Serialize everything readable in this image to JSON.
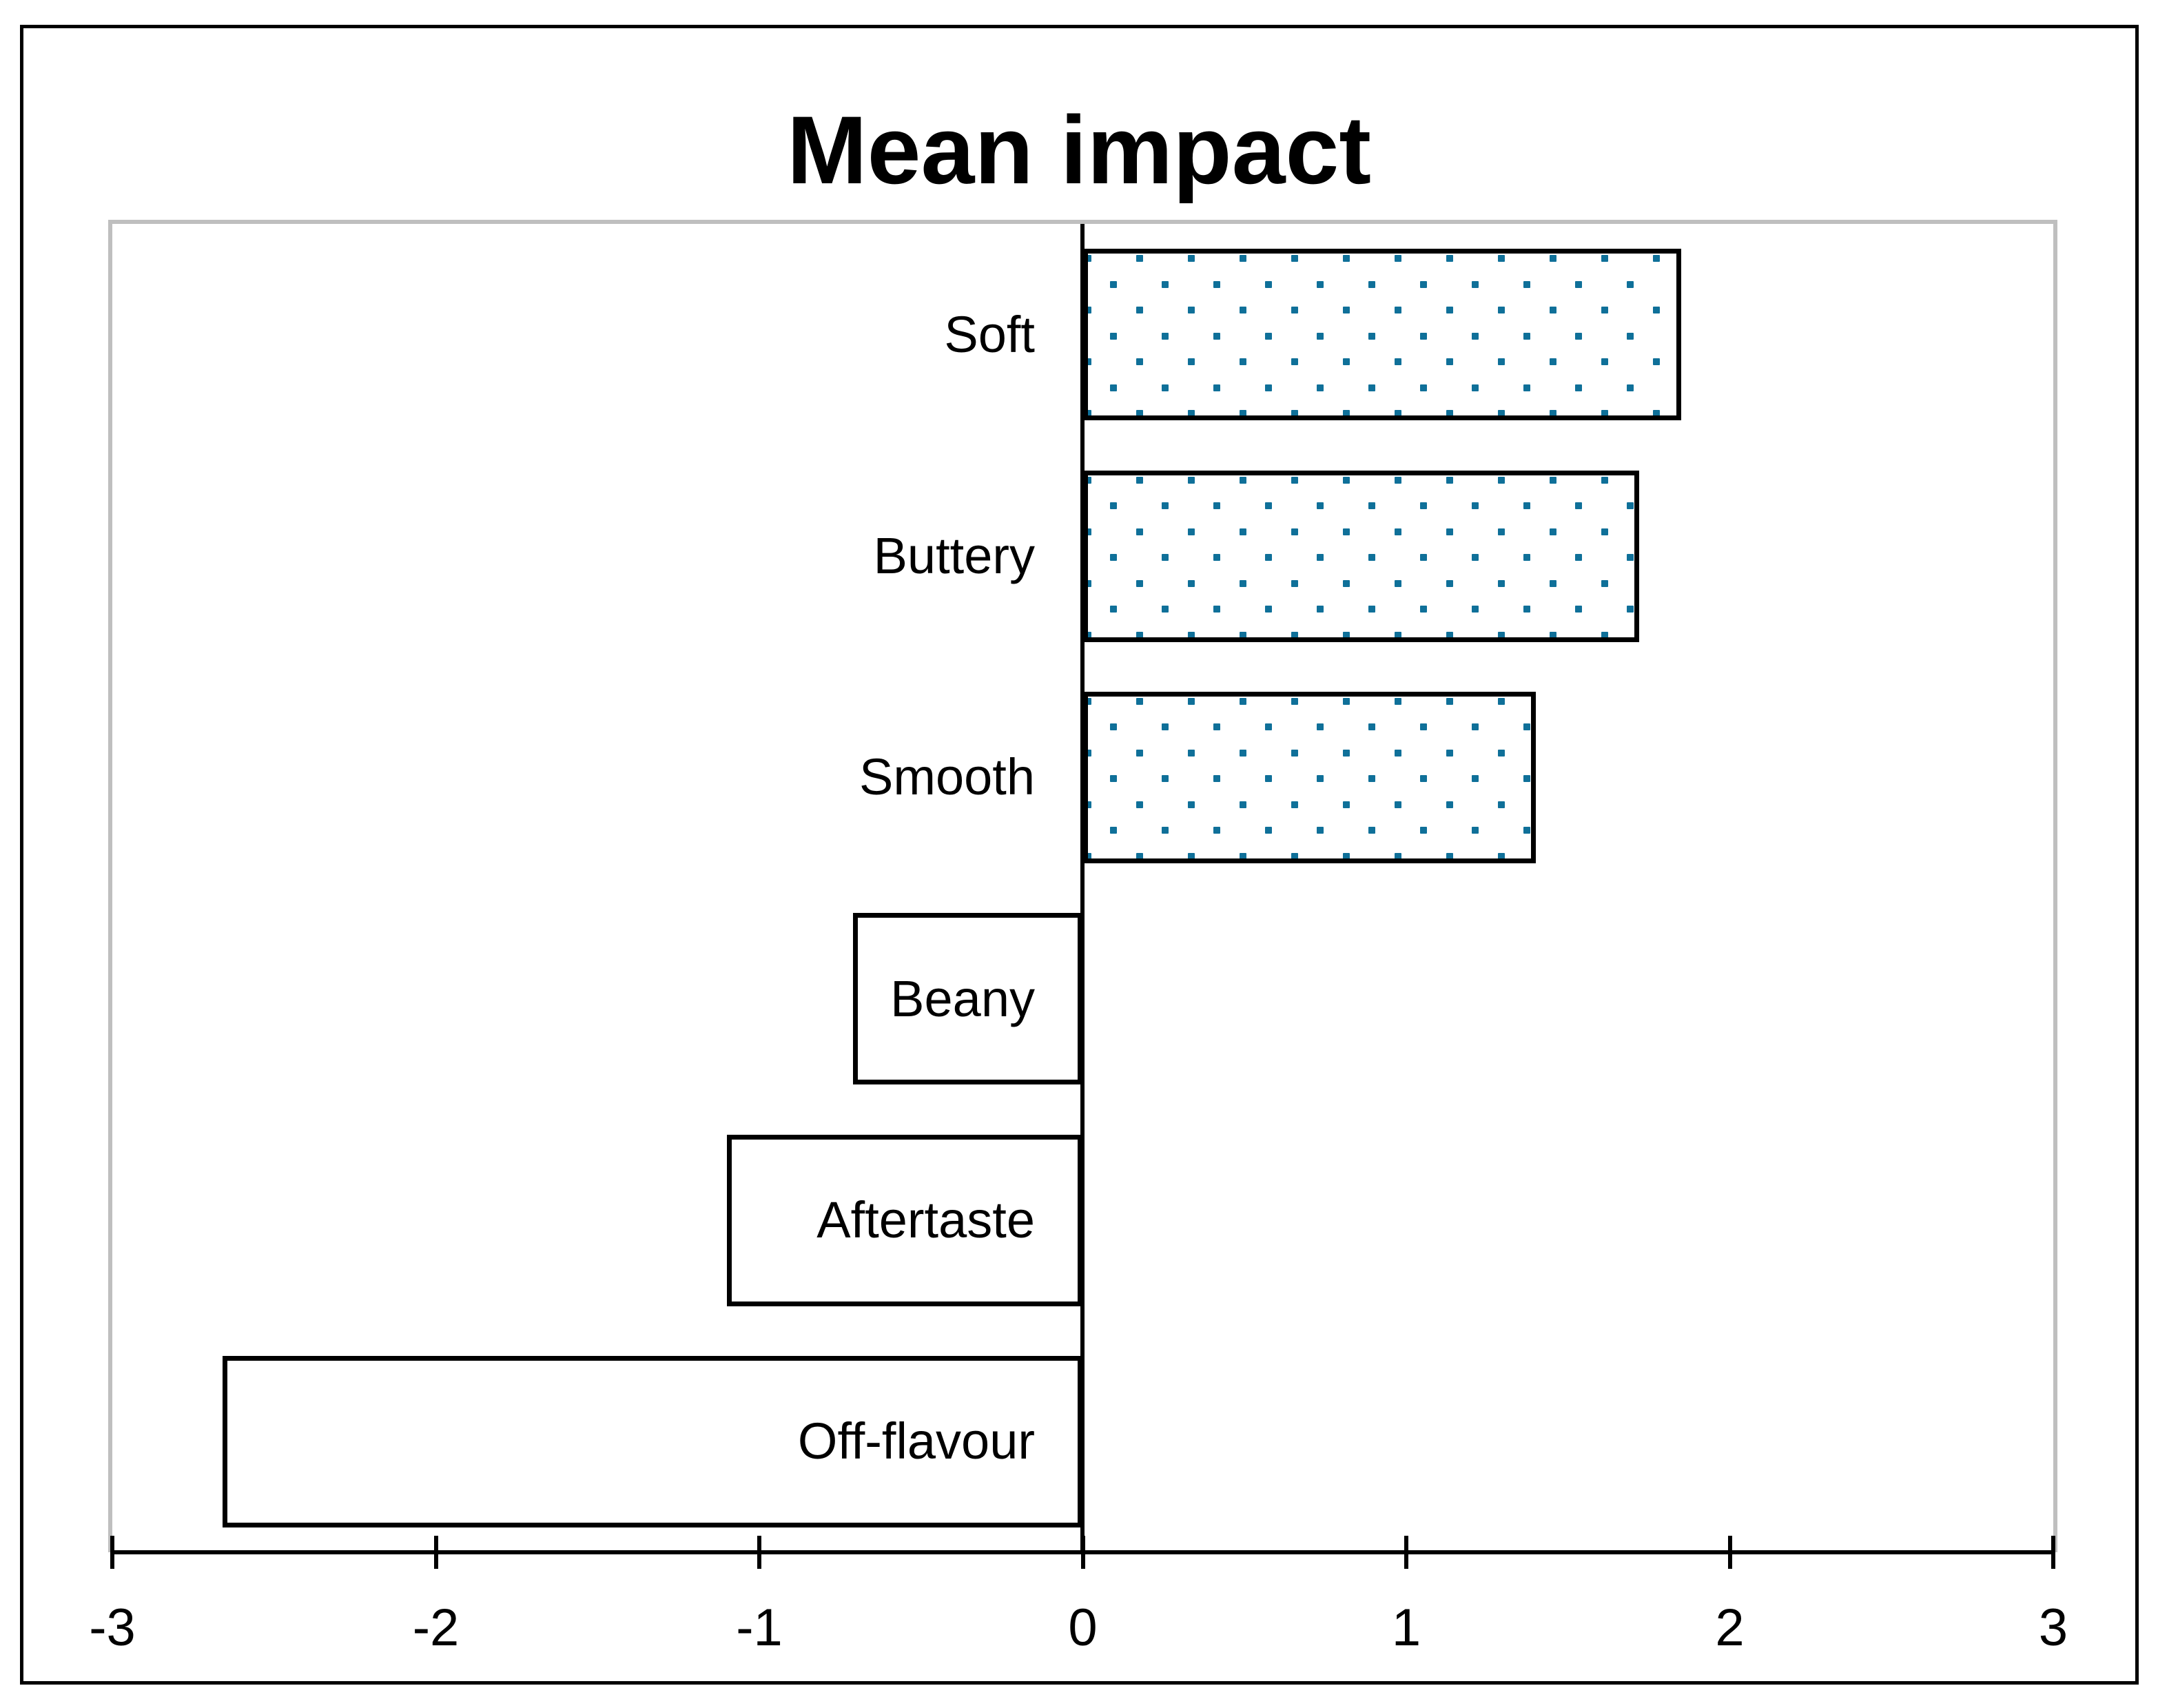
{
  "chart_data": {
    "type": "bar",
    "orientation": "horizontal",
    "title": "Mean impact",
    "categories": [
      "Soft",
      "Buttery",
      "Smooth",
      "Beany",
      "Aftertaste",
      "Off-flavour"
    ],
    "values": [
      1.85,
      1.72,
      1.4,
      -0.71,
      -1.1,
      -2.66
    ],
    "xlim": [
      -3,
      3
    ],
    "x_ticks": [
      -3,
      -2,
      -1,
      0,
      1,
      2,
      3
    ],
    "x_tick_labels": [
      "-3",
      "-2",
      "-1",
      "0",
      "1",
      "2",
      "3"
    ],
    "xlabel": "",
    "ylabel": "",
    "grid": false,
    "legend": null,
    "bar_fill_positive": "teal-dot-pattern",
    "bar_fill_negative": "plain-white",
    "label_position": "right-aligned-left-of-zero-axis",
    "colors": {
      "dot": "#0f7099",
      "bar_border": "#000000",
      "bar_fill": "#ffffff",
      "axis": "#000000",
      "zero_line": "#000000",
      "plot_border": "#bfbfbf",
      "frame_border": "#000000",
      "text": "#000000",
      "background": "#ffffff"
    }
  }
}
